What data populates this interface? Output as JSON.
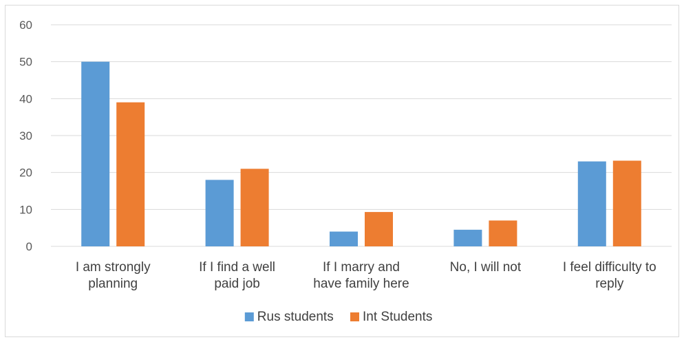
{
  "chart_data": {
    "type": "bar",
    "categories": [
      [
        "I am strongly",
        "planning"
      ],
      [
        "If I find a well",
        "paid job"
      ],
      [
        "If I marry and",
        "have family here"
      ],
      [
        "No, I will not"
      ],
      [
        "I feel difficulty to",
        "reply"
      ]
    ],
    "series": [
      {
        "name": "Rus students",
        "color": "#5b9bd5",
        "values": [
          50,
          18,
          4,
          4.5,
          23
        ]
      },
      {
        "name": "Int Students",
        "color": "#ed7d31",
        "values": [
          39,
          21,
          9.3,
          7,
          23.2
        ]
      }
    ],
    "ylim": [
      0,
      60
    ],
    "yticks": [
      0,
      10,
      20,
      30,
      40,
      50,
      60
    ],
    "grid": true,
    "legend_position": "bottom",
    "gridline_color": "#d9d9d9"
  }
}
